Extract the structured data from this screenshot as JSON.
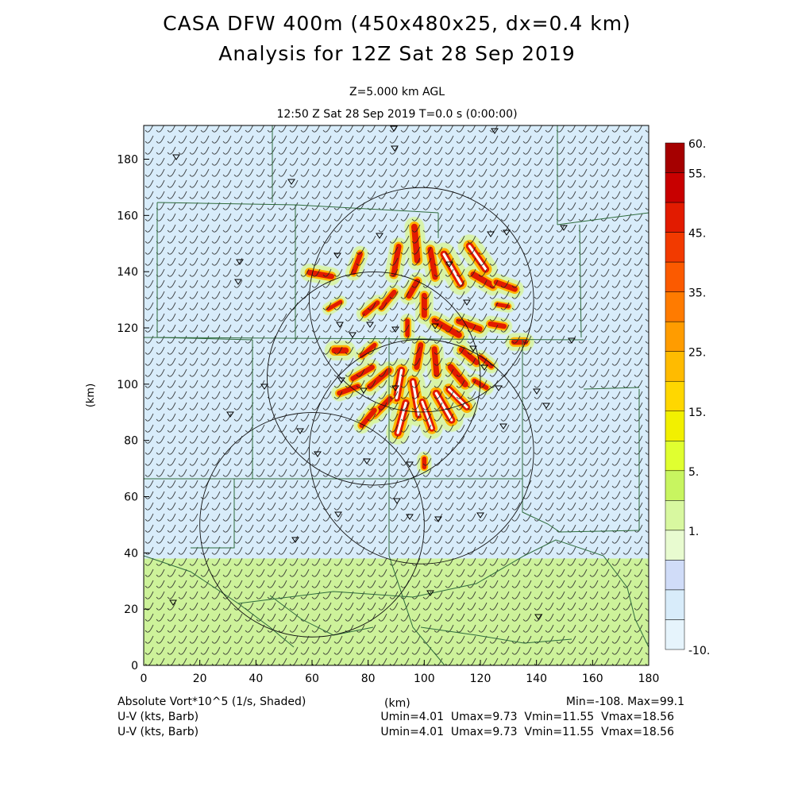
{
  "title": {
    "line1": "CASA DFW 400m (450x480x25, dx=0.4 km)",
    "line2": "Analysis for 12Z Sat 28 Sep 2019"
  },
  "subtitle": {
    "level": "Z=5.000 km AGL",
    "time": "12:50 Z Sat 28 Sep 2019    T=0.0 s (0:00:00)"
  },
  "footer": {
    "field1": "Absolute Vort*10^5 (1/s, Shaded)",
    "field2": "U-V (kts, Barb)",
    "field3": "U-V (kts, Barb)",
    "xunit": "(km)",
    "minmax": "Min=-108. Max=99.1",
    "range1": "Umin=4.01  Umax=9.73  Vmin=11.55  Vmax=18.56",
    "range2": "Umin=4.01  Umax=9.73  Vmin=11.55  Vmax=18.56"
  },
  "chart_data": {
    "type": "heatmap",
    "xlabel": "",
    "ylabel": "(km)",
    "xlim": [
      0,
      180
    ],
    "ylim": [
      0,
      192
    ],
    "x_ticks": [
      0,
      20,
      40,
      60,
      80,
      100,
      120,
      140,
      160,
      180
    ],
    "y_ticks": [
      0,
      20,
      40,
      60,
      80,
      100,
      120,
      140,
      160,
      180
    ],
    "colorbar": {
      "labels": [
        "60.",
        "55.",
        "45.",
        "35.",
        "25.",
        "15.",
        "5.",
        "1.",
        "-10."
      ],
      "colors": [
        "#a50000",
        "#c80000",
        "#e21b00",
        "#f23a00",
        "#fb5a00",
        "#ff7b00",
        "#ff9c00",
        "#ffbb00",
        "#ffd700",
        "#f2f000",
        "#e0ff30",
        "#c8f560",
        "#d8f8a0",
        "#e8fbd0",
        "#d0dcf8",
        "#d8ecfa",
        "#e6f4fc"
      ]
    },
    "background_bands": [
      {
        "y0": 0,
        "y1": 38,
        "level": "5 to 10"
      },
      {
        "y0": 38,
        "y1": 192,
        "level": "-10 to 1"
      }
    ],
    "radar_rings": [
      {
        "x": 99,
        "y": 130,
        "r": 40
      },
      {
        "x": 82,
        "y": 102,
        "r": 38
      },
      {
        "x": 99,
        "y": 76,
        "r": 40
      },
      {
        "x": 60,
        "y": 50,
        "r": 40
      }
    ],
    "vorticity_streaks": [
      {
        "x": 91,
        "y": 100,
        "len": 10,
        "ang": 80,
        "w": 2.6
      },
      {
        "x": 97,
        "y": 95,
        "len": 12,
        "ang": 100,
        "w": 2.6
      },
      {
        "x": 92,
        "y": 88,
        "len": 11,
        "ang": 75,
        "w": 2.6
      },
      {
        "x": 101,
        "y": 89,
        "len": 10,
        "ang": 110,
        "w": 2.4
      },
      {
        "x": 107,
        "y": 92,
        "len": 11,
        "ang": 120,
        "w": 2.6
      },
      {
        "x": 112,
        "y": 95,
        "len": 9,
        "ang": 135,
        "w": 2.4
      },
      {
        "x": 112,
        "y": 103,
        "len": 8,
        "ang": 130,
        "w": 2.2
      },
      {
        "x": 116,
        "y": 110,
        "len": 7,
        "ang": 140,
        "w": 2.0
      },
      {
        "x": 104,
        "y": 108,
        "len": 9,
        "ang": 95,
        "w": 2.0
      },
      {
        "x": 98,
        "y": 110,
        "len": 8,
        "ang": 80,
        "w": 2.0
      },
      {
        "x": 84,
        "y": 102,
        "len": 9,
        "ang": 40,
        "w": 2.0
      },
      {
        "x": 78,
        "y": 104,
        "len": 8,
        "ang": 30,
        "w": 1.8
      },
      {
        "x": 73,
        "y": 98,
        "len": 7,
        "ang": 20,
        "w": 1.8
      },
      {
        "x": 85,
        "y": 92,
        "len": 8,
        "ang": 45,
        "w": 2.0
      },
      {
        "x": 80,
        "y": 88,
        "len": 7,
        "ang": 50,
        "w": 1.8
      },
      {
        "x": 70,
        "y": 112,
        "len": 4,
        "ang": 0,
        "w": 2.2
      },
      {
        "x": 63,
        "y": 139,
        "len": 8,
        "ang": 170,
        "w": 2.0
      },
      {
        "x": 76,
        "y": 143,
        "len": 7,
        "ang": 70,
        "w": 1.8
      },
      {
        "x": 90,
        "y": 144,
        "len": 10,
        "ang": 80,
        "w": 2.0
      },
      {
        "x": 97,
        "y": 150,
        "len": 12,
        "ang": 95,
        "w": 2.2
      },
      {
        "x": 103,
        "y": 143,
        "len": 10,
        "ang": 100,
        "w": 2.0
      },
      {
        "x": 110,
        "y": 141,
        "len": 12,
        "ang": 120,
        "w": 2.6
      },
      {
        "x": 119,
        "y": 145,
        "len": 10,
        "ang": 125,
        "w": 2.6
      },
      {
        "x": 121,
        "y": 137,
        "len": 8,
        "ang": 150,
        "w": 2.2
      },
      {
        "x": 129,
        "y": 135,
        "len": 7,
        "ang": 160,
        "w": 2.0
      },
      {
        "x": 96,
        "y": 134,
        "len": 6,
        "ang": 60,
        "w": 2.0
      },
      {
        "x": 100,
        "y": 128,
        "len": 7,
        "ang": 90,
        "w": 2.0
      },
      {
        "x": 87,
        "y": 130,
        "len": 7,
        "ang": 50,
        "w": 1.8
      },
      {
        "x": 81,
        "y": 127,
        "len": 6,
        "ang": 40,
        "w": 1.8
      },
      {
        "x": 108,
        "y": 120,
        "len": 10,
        "ang": 150,
        "w": 2.2
      },
      {
        "x": 116,
        "y": 121,
        "len": 8,
        "ang": 160,
        "w": 2.0
      },
      {
        "x": 126,
        "y": 121,
        "len": 5,
        "ang": 170,
        "w": 1.8
      },
      {
        "x": 134,
        "y": 115,
        "len": 4,
        "ang": 0,
        "w": 2.0
      },
      {
        "x": 80,
        "y": 112,
        "len": 6,
        "ang": 40,
        "w": 1.6
      },
      {
        "x": 94,
        "y": 120,
        "len": 5,
        "ang": 90,
        "w": 1.6
      },
      {
        "x": 122,
        "y": 108,
        "len": 5,
        "ang": 140,
        "w": 1.6
      },
      {
        "x": 120,
        "y": 100,
        "len": 5,
        "ang": 150,
        "w": 1.6
      },
      {
        "x": 100,
        "y": 72,
        "len": 3,
        "ang": 90,
        "w": 1.6
      },
      {
        "x": 68,
        "y": 128,
        "len": 5,
        "ang": 30,
        "w": 1.4
      },
      {
        "x": 128,
        "y": 128,
        "len": 4,
        "ang": 170,
        "w": 1.4
      }
    ]
  }
}
